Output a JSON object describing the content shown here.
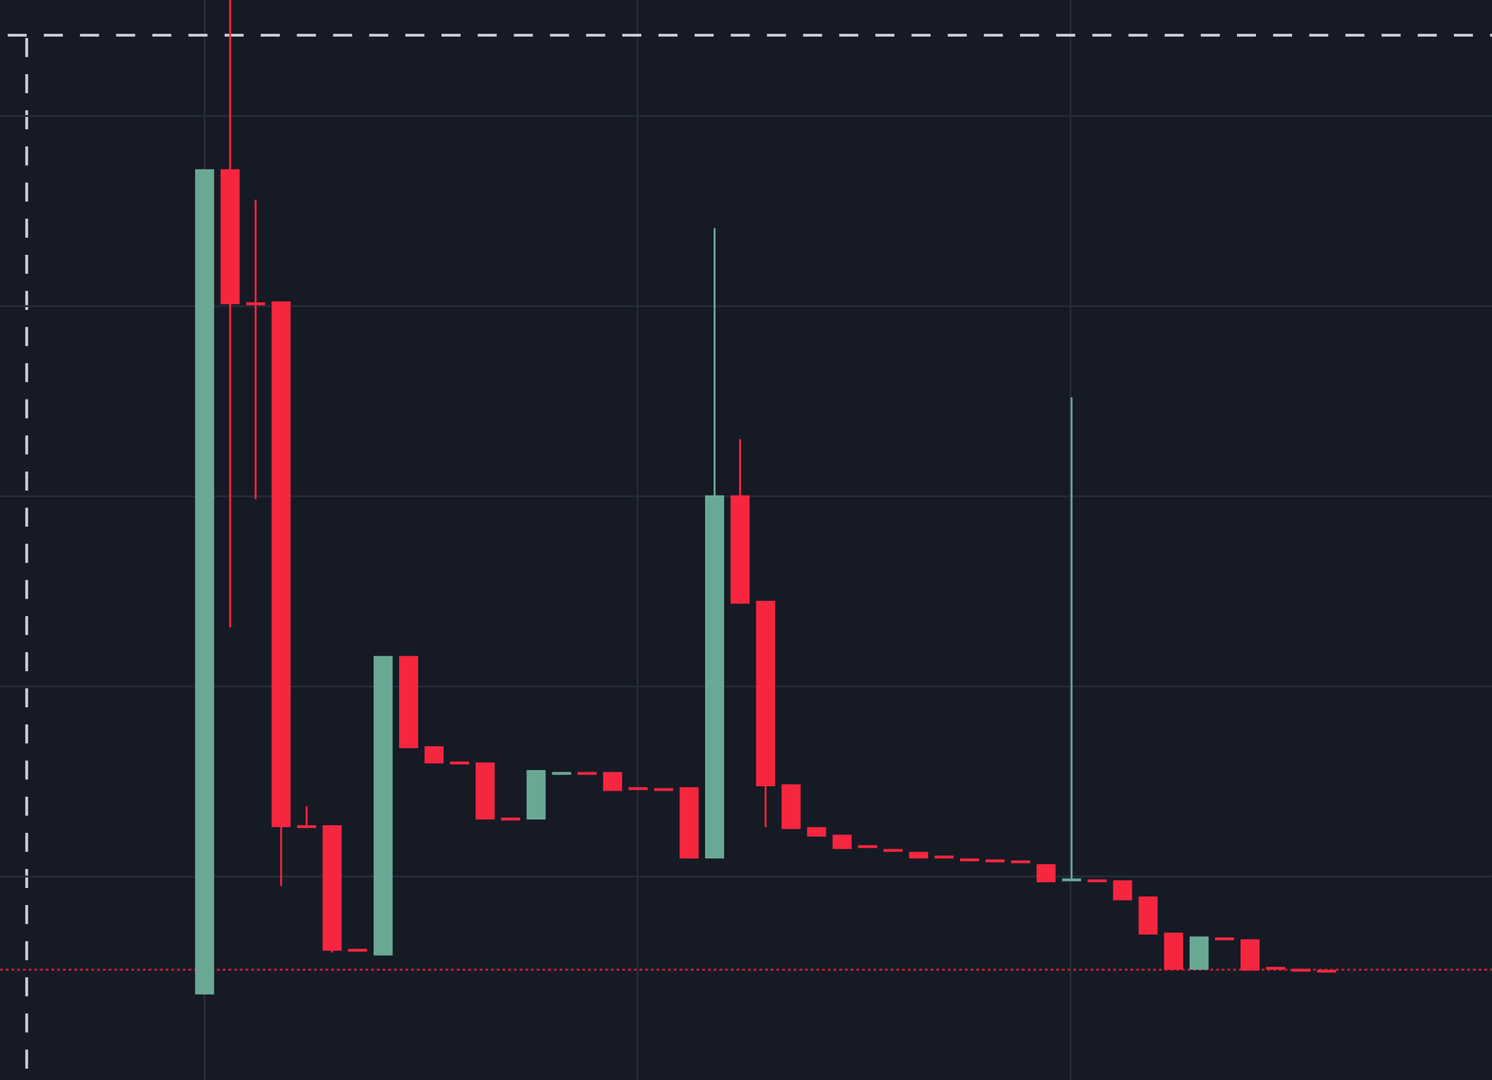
{
  "chart_data": {
    "type": "candlestick",
    "open": [
      0.76,
      9.44,
      8.04,
      8.05,
      2.54,
      2.54,
      1.24,
      1.17,
      4.32,
      3.37,
      3.21,
      3.2,
      2.62,
      2.6,
      3.09,
      3.1,
      3.1,
      2.94,
      2.93,
      2.94,
      2.19,
      6.01,
      4.9,
      2.97,
      2.52,
      2.44,
      2.33,
      2.29,
      2.26,
      2.22,
      2.19,
      2.18,
      2.17,
      2.13,
      1.96,
      1.97,
      1.96,
      1.79,
      1.41,
      1.02,
      1.36,
      1.34,
      1.05,
      1.03,
      1.02
    ],
    "high": [
      9.44,
      11.22,
      9.12,
      8.05,
      2.74,
      2.54,
      1.24,
      4.32,
      4.32,
      3.37,
      3.21,
      3.2,
      2.62,
      3.12,
      3.1,
      3.1,
      3.1,
      2.94,
      2.93,
      2.94,
      8.82,
      6.6,
      4.9,
      2.97,
      2.52,
      2.44,
      2.33,
      2.29,
      2.26,
      2.22,
      2.19,
      2.18,
      2.17,
      2.13,
      7.04,
      1.97,
      1.96,
      1.79,
      1.41,
      1.37,
      1.36,
      1.34,
      1.05,
      1.03,
      1.02
    ],
    "low": [
      0.76,
      4.62,
      5.97,
      1.9,
      2.52,
      1.2,
      1.22,
      1.17,
      3.35,
      3.19,
      3.18,
      2.6,
      2.6,
      2.6,
      3.09,
      3.08,
      2.9,
      2.92,
      2.91,
      2.19,
      2.19,
      4.87,
      2.52,
      2.5,
      2.42,
      2.29,
      2.3,
      2.27,
      2.19,
      2.19,
      2.16,
      2.15,
      2.14,
      1.94,
      1.96,
      1.95,
      1.75,
      1.39,
      1.02,
      1.02,
      1.34,
      1.01,
      1.03,
      1.02,
      1.01
    ],
    "close": [
      9.44,
      8.02,
      8.02,
      2.52,
      2.52,
      1.22,
      1.22,
      4.32,
      3.35,
      3.19,
      3.18,
      2.6,
      2.6,
      3.12,
      3.1,
      3.08,
      2.9,
      2.92,
      2.91,
      2.19,
      6.01,
      4.87,
      2.95,
      2.5,
      2.42,
      2.29,
      2.3,
      2.27,
      2.19,
      2.19,
      2.16,
      2.15,
      2.14,
      1.94,
      1.98,
      1.95,
      1.75,
      1.39,
      1.02,
      1.37,
      1.34,
      1.01,
      1.03,
      1.02,
      1.01
    ],
    "up_color": "#6aa896",
    "down_color": "#f7263f",
    "ylim": [
      -0.14,
      11.22
    ],
    "yticks": [
      2,
      4,
      6,
      8,
      10
    ],
    "grid": true,
    "price_line": 1.02,
    "price_line_color": "#c8213a",
    "crosshair_y": 10.85
  }
}
